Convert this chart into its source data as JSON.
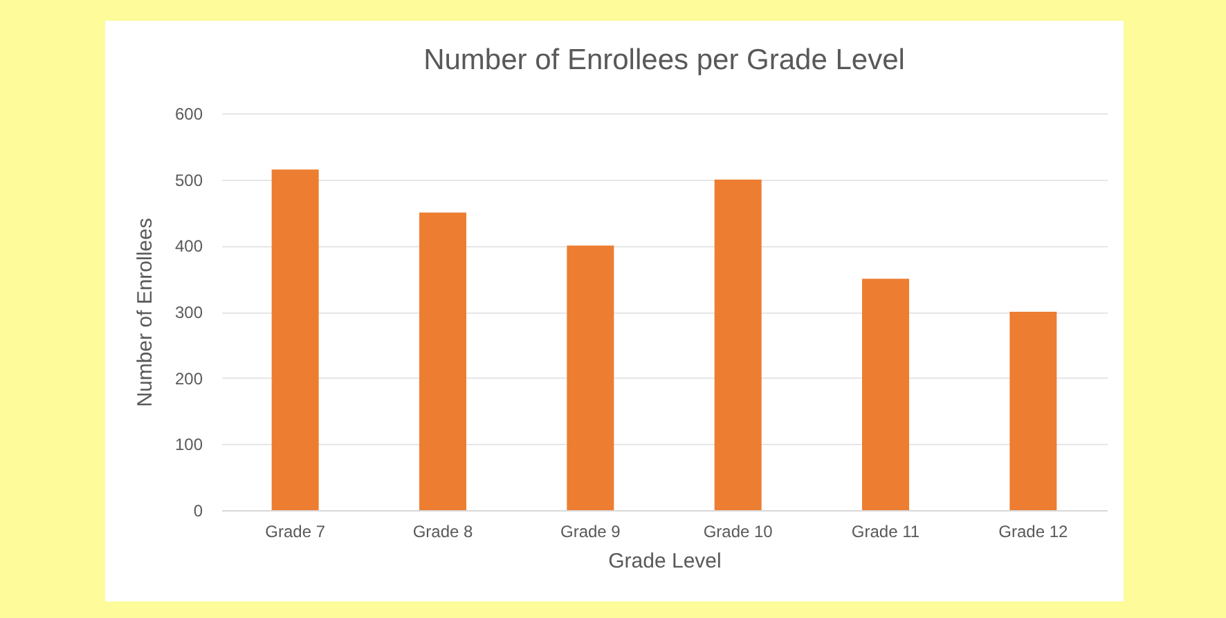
{
  "chart_data": {
    "type": "bar",
    "title": "Number of Enrollees per Grade Level",
    "xlabel": "Grade Level",
    "ylabel": "Number of Enrollees",
    "categories": [
      "Grade 7",
      "Grade 8",
      "Grade 9",
      "Grade 10",
      "Grade 11",
      "Grade 12"
    ],
    "values": [
      515,
      450,
      400,
      500,
      350,
      300
    ],
    "color": "#ed7d31",
    "ylim": [
      0,
      600
    ],
    "yticks": [
      0,
      100,
      200,
      300,
      400,
      500,
      600
    ],
    "grid": "y"
  }
}
